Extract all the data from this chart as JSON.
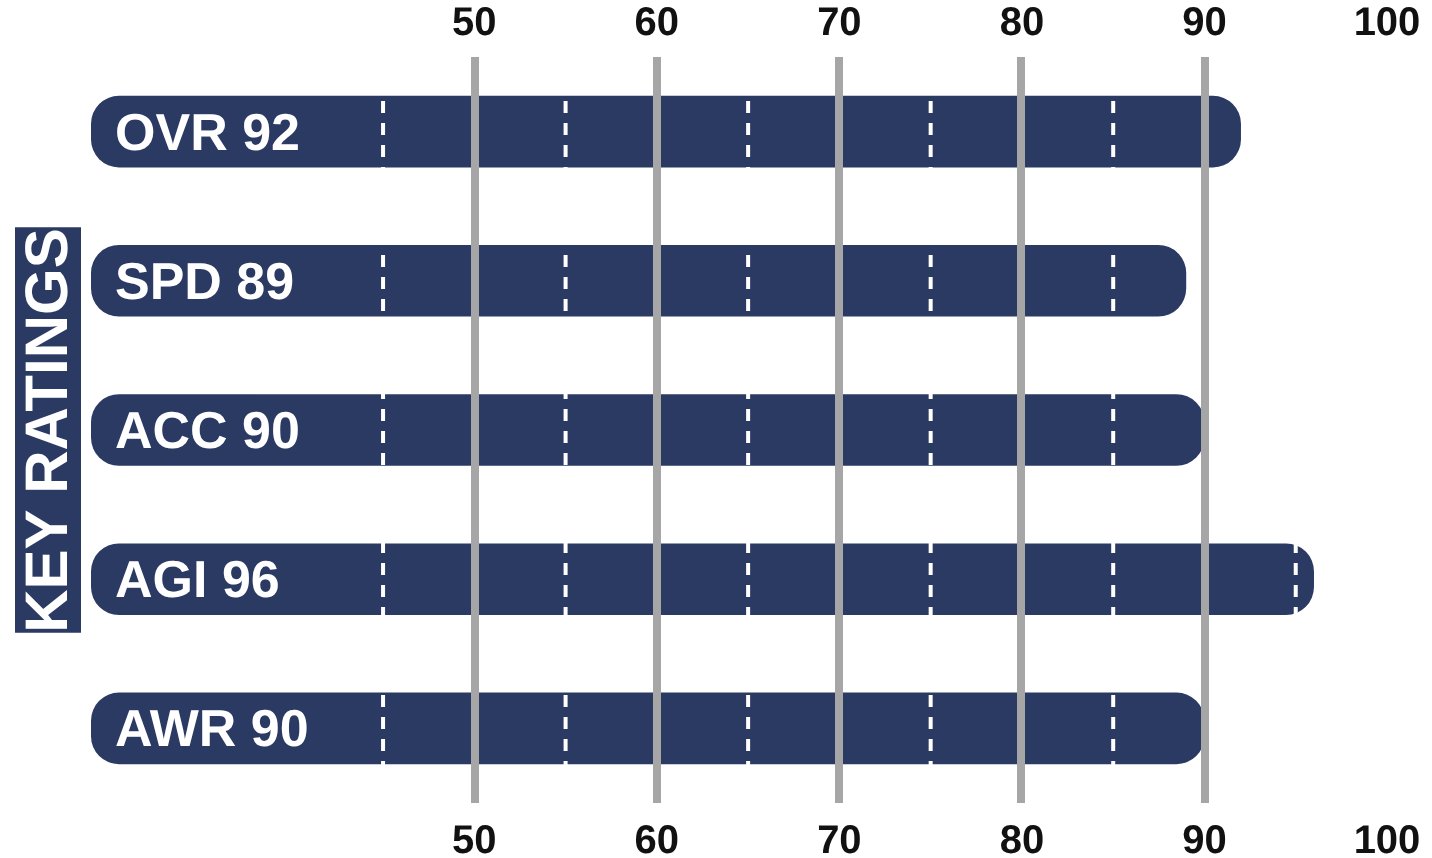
{
  "chart_data": {
    "type": "bar",
    "orientation": "horizontal",
    "title": "KEY RATINGS",
    "categories": [
      "OVR 92",
      "SPD 89",
      "ACC 90",
      "AGI 96",
      "AWR 90"
    ],
    "values": [
      92,
      89,
      90,
      96,
      90
    ],
    "color": "#2b3a63",
    "xlim": [
      29,
      100
    ],
    "xticks": [
      50,
      60,
      70,
      80,
      90,
      100
    ],
    "x2lim": [
      29,
      100
    ],
    "x2ticks": [
      50,
      60,
      70,
      80,
      90,
      100
    ],
    "grid": "x",
    "ref_lines": [
      {
        "axis": "x",
        "value": 45,
        "color": "#ffffff",
        "line_style": "dashed"
      },
      {
        "axis": "x",
        "value": 55,
        "color": "#ffffff",
        "line_style": "dashed"
      },
      {
        "axis": "x",
        "value": 65,
        "color": "#ffffff",
        "line_style": "dashed"
      },
      {
        "axis": "x",
        "value": 75,
        "color": "#ffffff",
        "line_style": "dashed"
      },
      {
        "axis": "x",
        "value": 85,
        "color": "#ffffff",
        "line_style": "dashed"
      },
      {
        "axis": "x",
        "value": 95,
        "color": "#ffffff",
        "line_style": "dashed"
      }
    ]
  }
}
